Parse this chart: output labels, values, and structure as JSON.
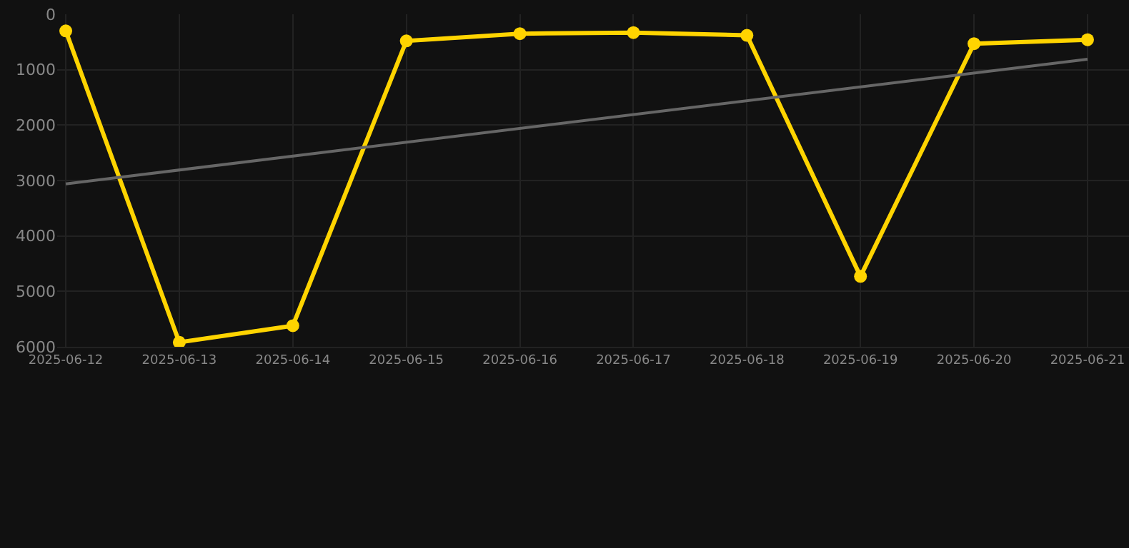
{
  "chart_data": {
    "type": "line",
    "x": [
      "2025-06-12",
      "2025-06-13",
      "2025-06-14",
      "2025-06-15",
      "2025-06-16",
      "2025-06-17",
      "2025-06-18",
      "2025-06-19",
      "2025-06-20",
      "2025-06-21"
    ],
    "series": [
      {
        "color": "#ffd400",
        "values": [
          300,
          5920,
          5620,
          480,
          350,
          330,
          380,
          4730,
          530,
          460
        ],
        "marker": "circle"
      },
      {
        "type": "line",
        "color": "#666666",
        "x": [
          "2025-06-12",
          "2025-06-21"
        ],
        "values": [
          3060,
          810
        ],
        "marker": "none"
      }
    ],
    "ylim": [
      6000,
      0
    ],
    "yticks": [
      0,
      1000,
      2000,
      3000,
      4000,
      5000,
      6000
    ],
    "xlim": [
      "2025-06-11T22:11",
      "2025-06-21T08:46"
    ],
    "xticks": [
      {
        "value": "2025-06-12",
        "label": "2025-06-12"
      },
      {
        "value": "2025-06-13",
        "label": "2025-06-13"
      },
      {
        "value": "2025-06-14",
        "label": "2025-06-14"
      },
      {
        "value": "2025-06-15",
        "label": "2025-06-15"
      },
      {
        "value": "2025-06-16",
        "label": "2025-06-16"
      },
      {
        "value": "2025-06-17",
        "label": "2025-06-17"
      },
      {
        "value": "2025-06-18",
        "label": "2025-06-18"
      },
      {
        "value": "2025-06-19",
        "label": "2025-06-19"
      },
      {
        "value": "2025-06-20",
        "label": "2025-06-20"
      },
      {
        "value": "2025-06-21",
        "label": "2025-06-21"
      }
    ],
    "grid": true
  }
}
